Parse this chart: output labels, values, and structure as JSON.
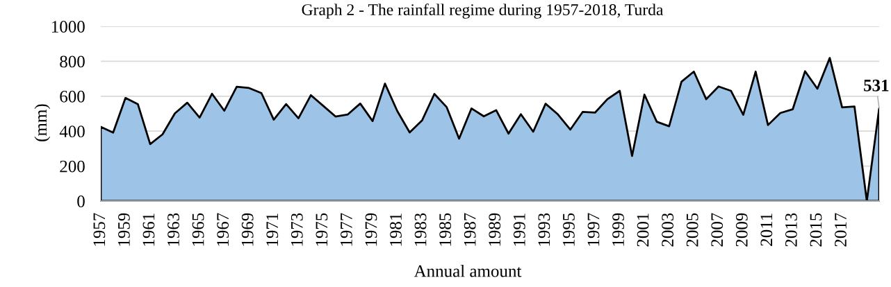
{
  "chart_data": {
    "type": "area",
    "title": "Graph 2 - The rainfall regime during 1957-2018, Turda",
    "xlabel": "Annual amount",
    "ylabel": "(mm)",
    "categories": [
      "1957",
      null,
      "1959",
      null,
      "1961",
      null,
      "1963",
      null,
      "1965",
      null,
      "1967",
      null,
      "1969",
      null,
      "1971",
      null,
      "1973",
      null,
      "1975",
      null,
      "1977",
      null,
      "1979",
      null,
      "1981",
      null,
      "1983",
      null,
      "1985",
      null,
      "1987",
      null,
      "1989",
      null,
      "1991",
      null,
      "1993",
      null,
      "1995",
      null,
      "1997",
      null,
      "1999",
      null,
      "2001",
      null,
      "2003",
      null,
      "2005",
      null,
      "2007",
      null,
      "2009",
      null,
      "2011",
      null,
      "2013",
      null,
      "2015",
      null,
      "2017",
      null,
      null,
      null
    ],
    "series": [
      {
        "color": "#9dc3e6",
        "values": [
          425,
          392,
          590,
          555,
          326,
          382,
          502,
          563,
          478,
          614,
          517,
          654,
          647,
          618,
          466,
          555,
          474,
          606,
          545,
          484,
          496,
          558,
          458,
          672,
          515,
          393,
          461,
          613,
          537,
          357,
          530,
          485,
          520,
          386,
          497,
          397,
          557,
          496,
          409,
          510,
          506,
          583,
          631,
          258,
          609,
          454,
          428,
          683,
          741,
          583,
          656,
          631,
          494,
          741,
          435,
          504,
          525,
          743,
          643,
          819,
          536,
          541,
          0,
          531
        ],
        "value_labels": [
          null,
          null,
          null,
          null,
          null,
          null,
          null,
          null,
          null,
          null,
          null,
          null,
          null,
          null,
          null,
          null,
          null,
          null,
          null,
          null,
          null,
          null,
          null,
          null,
          null,
          null,
          null,
          null,
          null,
          null,
          null,
          null,
          null,
          null,
          null,
          null,
          null,
          null,
          null,
          null,
          null,
          null,
          null,
          null,
          null,
          null,
          null,
          null,
          null,
          null,
          null,
          null,
          null,
          null,
          null,
          null,
          null,
          null,
          null,
          null,
          null,
          null,
          null,
          "531"
        ]
      }
    ],
    "ylim": [
      0,
      1000
    ],
    "yticks": [
      0,
      200,
      400,
      600,
      800,
      1000
    ],
    "grid": "y"
  }
}
